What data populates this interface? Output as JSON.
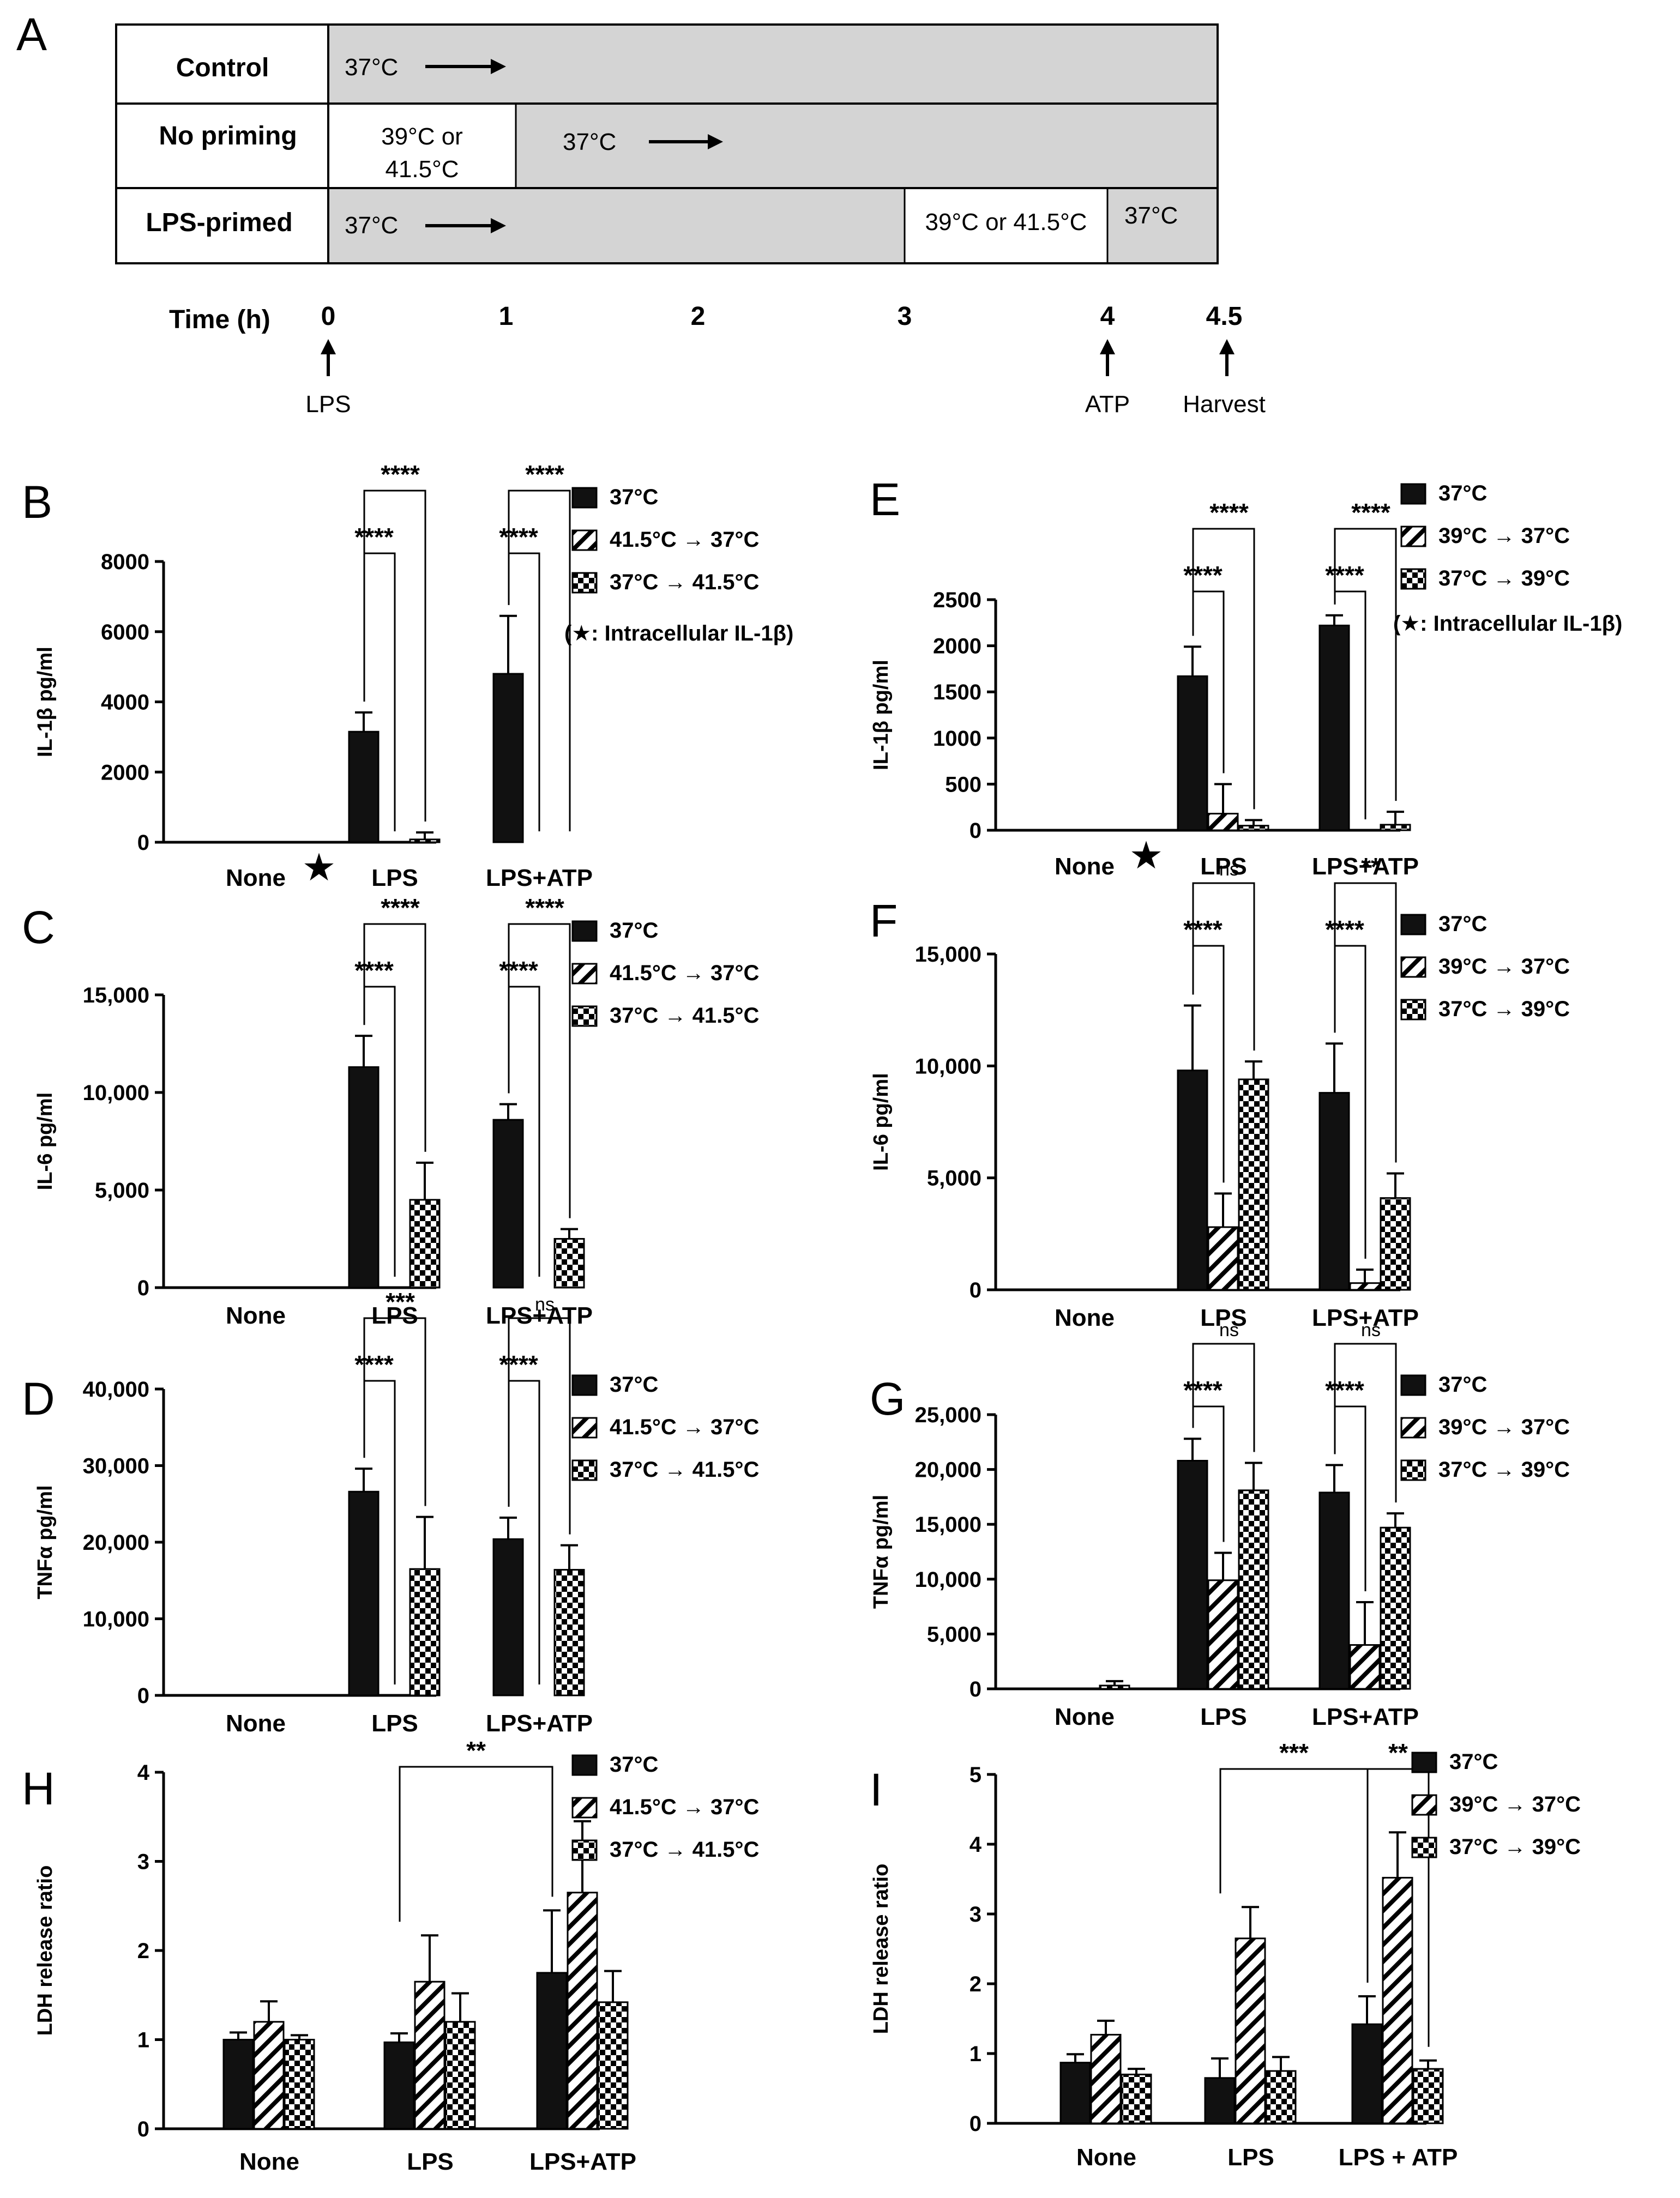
{
  "timeline": {
    "label": "A",
    "rows": [
      {
        "name": "Control",
        "cells": [
          "37°C"
        ]
      },
      {
        "name": "No priming",
        "cells": [
          "39°C or",
          "41.5°C",
          "37°C"
        ]
      },
      {
        "name": "LPS-primed",
        "cells": [
          "37°C",
          "39°C or 41.5°C",
          "37°C"
        ]
      }
    ],
    "time_label": "Time (h)",
    "time_ticks": [
      "0",
      "1",
      "2",
      "3",
      "4",
      "4.5"
    ],
    "events": [
      {
        "at": "0",
        "label": "LPS"
      },
      {
        "at": "4",
        "label": "ATP"
      },
      {
        "at": "4.5",
        "label": "Harvest"
      }
    ]
  },
  "chart_data": [
    {
      "panel": "B",
      "type": "bar",
      "categories": [
        "None",
        "LPS",
        "LPS+ATP"
      ],
      "series": [
        {
          "name": "37°C",
          "values": [
            0,
            3150,
            4800
          ],
          "errors": [
            0,
            550,
            1650
          ]
        },
        {
          "name": "41.5°C → 37°C",
          "values": [
            0,
            0,
            0
          ],
          "errors": [
            0,
            0,
            0
          ]
        },
        {
          "name": "37°C → 41.5°C",
          "values": [
            0,
            80,
            0
          ],
          "errors": [
            0,
            200,
            0
          ]
        }
      ],
      "ylabel": "IL-1β pg/ml",
      "ylim": [
        0,
        8000
      ],
      "yticks": [
        0,
        2000,
        4000,
        6000,
        8000
      ],
      "ytick_labels": [
        "0",
        "2000",
        "4000",
        "6000",
        "8000"
      ],
      "marker_text": "★",
      "note": "(★: Intracellular IL-1β)",
      "brackets": [
        {
          "group": 1,
          "from": 0,
          "to": 1,
          "label": "****"
        },
        {
          "group": 1,
          "from": 0,
          "to": 2,
          "label": "****"
        },
        {
          "group": 2,
          "from": 0,
          "to": 1,
          "label": "****"
        },
        {
          "group": 2,
          "from": 0,
          "to": 2,
          "label": "****"
        }
      ]
    },
    {
      "panel": "C",
      "type": "bar",
      "categories": [
        "None",
        "LPS",
        "LPS+ATP"
      ],
      "series": [
        {
          "name": "37°C",
          "values": [
            0,
            11300,
            8600
          ],
          "errors": [
            0,
            1600,
            800
          ]
        },
        {
          "name": "41.5°C → 37°C",
          "values": [
            0,
            0,
            0
          ],
          "errors": [
            0,
            0,
            0
          ]
        },
        {
          "name": "37°C → 41.5°C",
          "values": [
            0,
            4500,
            2500
          ],
          "errors": [
            0,
            1900,
            500
          ]
        }
      ],
      "ylabel": "IL-6 pg/ml",
      "ylim": [
        0,
        15000
      ],
      "yticks": [
        0,
        5000,
        10000,
        15000
      ],
      "ytick_labels": [
        "0",
        "5,000",
        "10,000",
        "15,000"
      ],
      "brackets": [
        {
          "group": 1,
          "from": 0,
          "to": 1,
          "label": "****"
        },
        {
          "group": 1,
          "from": 0,
          "to": 2,
          "label": "****"
        },
        {
          "group": 2,
          "from": 0,
          "to": 1,
          "label": "****"
        },
        {
          "group": 2,
          "from": 0,
          "to": 2,
          "label": "****"
        }
      ]
    },
    {
      "panel": "D",
      "type": "bar",
      "categories": [
        "None",
        "LPS",
        "LPS+ATP"
      ],
      "series": [
        {
          "name": "37°C",
          "values": [
            0,
            26600,
            20400
          ],
          "errors": [
            0,
            3000,
            2800
          ]
        },
        {
          "name": "41.5°C → 37°C",
          "values": [
            0,
            0,
            0
          ],
          "errors": [
            0,
            0,
            0
          ]
        },
        {
          "name": "37°C → 41.5°C",
          "values": [
            0,
            16500,
            16400
          ],
          "errors": [
            0,
            6800,
            3200
          ]
        }
      ],
      "ylabel": "TNFα pg/ml",
      "ylim": [
        0,
        40000
      ],
      "yticks": [
        0,
        10000,
        20000,
        30000,
        40000
      ],
      "ytick_labels": [
        "0",
        "10,000",
        "20,000",
        "30,000",
        "40,000"
      ],
      "brackets": [
        {
          "group": 1,
          "from": 0,
          "to": 1,
          "label": "****"
        },
        {
          "group": 1,
          "from": 0,
          "to": 2,
          "label": "***"
        },
        {
          "group": 2,
          "from": 0,
          "to": 1,
          "label": "****"
        },
        {
          "group": 2,
          "from": 0,
          "to": 2,
          "label": "ns"
        }
      ]
    },
    {
      "panel": "E",
      "type": "bar",
      "categories": [
        "None",
        "LPS",
        "LPS+ATP"
      ],
      "series": [
        {
          "name": "37°C",
          "values": [
            0,
            1670,
            2220
          ],
          "errors": [
            0,
            320,
            110
          ]
        },
        {
          "name": "39°C → 37°C",
          "values": [
            0,
            180,
            0
          ],
          "errors": [
            0,
            320,
            0
          ]
        },
        {
          "name": "37°C → 39°C",
          "values": [
            0,
            50,
            60
          ],
          "errors": [
            0,
            60,
            140
          ]
        }
      ],
      "ylabel": "IL-1β pg/ml",
      "ylim": [
        0,
        2500
      ],
      "yticks": [
        0,
        500,
        1000,
        1500,
        2000,
        2500
      ],
      "ytick_labels": [
        "0",
        "500",
        "1000",
        "1500",
        "2000",
        "2500"
      ],
      "marker_text": "★",
      "note": "(★: Intracellular IL-1β)",
      "brackets": [
        {
          "group": 1,
          "from": 0,
          "to": 1,
          "label": "****"
        },
        {
          "group": 1,
          "from": 0,
          "to": 2,
          "label": "****"
        },
        {
          "group": 2,
          "from": 0,
          "to": 1,
          "label": "****"
        },
        {
          "group": 2,
          "from": 0,
          "to": 2,
          "label": "****"
        }
      ]
    },
    {
      "panel": "F",
      "type": "bar",
      "categories": [
        "None",
        "LPS",
        "LPS+ATP"
      ],
      "series": [
        {
          "name": "37°C",
          "values": [
            0,
            9800,
            8800
          ],
          "errors": [
            0,
            2900,
            2200
          ]
        },
        {
          "name": "39°C → 37°C",
          "values": [
            0,
            2800,
            300
          ],
          "errors": [
            0,
            1500,
            600
          ]
        },
        {
          "name": "37°C → 39°C",
          "values": [
            0,
            9400,
            4100
          ],
          "errors": [
            0,
            800,
            1100
          ]
        }
      ],
      "ylabel": "IL-6 pg/ml",
      "ylim": [
        0,
        15000
      ],
      "yticks": [
        0,
        5000,
        10000,
        15000
      ],
      "ytick_labels": [
        "0",
        "5,000",
        "10,000",
        "15,000"
      ],
      "brackets": [
        {
          "group": 1,
          "from": 0,
          "to": 1,
          "label": "****"
        },
        {
          "group": 1,
          "from": 0,
          "to": 2,
          "label": "ns"
        },
        {
          "group": 2,
          "from": 0,
          "to": 1,
          "label": "****"
        },
        {
          "group": 2,
          "from": 0,
          "to": 2,
          "label": "**"
        }
      ]
    },
    {
      "panel": "G",
      "type": "bar",
      "categories": [
        "None",
        "LPS",
        "LPS+ATP"
      ],
      "series": [
        {
          "name": "37°C",
          "values": [
            0,
            20800,
            17900
          ],
          "errors": [
            0,
            2000,
            2500
          ]
        },
        {
          "name": "39°C → 37°C",
          "values": [
            0,
            9900,
            4000
          ],
          "errors": [
            0,
            2500,
            3900
          ]
        },
        {
          "name": "37°C → 39°C",
          "values": [
            300,
            18100,
            14700
          ],
          "errors": [
            400,
            2500,
            1300
          ]
        }
      ],
      "ylabel": "TNFα pg/ml",
      "ylim": [
        0,
        25000
      ],
      "yticks": [
        0,
        5000,
        10000,
        15000,
        20000,
        25000
      ],
      "ytick_labels": [
        "0",
        "5,000",
        "10,000",
        "15,000",
        "20,000",
        "25,000"
      ],
      "brackets": [
        {
          "group": 1,
          "from": 0,
          "to": 1,
          "label": "****"
        },
        {
          "group": 1,
          "from": 0,
          "to": 2,
          "label": "ns"
        },
        {
          "group": 2,
          "from": 0,
          "to": 1,
          "label": "****"
        },
        {
          "group": 2,
          "from": 0,
          "to": 2,
          "label": "ns"
        }
      ]
    },
    {
      "panel": "H",
      "type": "bar",
      "categories": [
        "None",
        "LPS",
        "LPS+ATP"
      ],
      "series": [
        {
          "name": "37°C",
          "values": [
            1.0,
            0.97,
            1.75
          ],
          "errors": [
            0.08,
            0.1,
            0.7
          ]
        },
        {
          "name": "41.5°C → 37°C",
          "values": [
            1.2,
            1.65,
            2.65
          ],
          "errors": [
            0.23,
            0.52,
            0.8
          ]
        },
        {
          "name": "37°C → 41.5°C",
          "values": [
            1.0,
            1.2,
            1.42
          ],
          "errors": [
            0.05,
            0.32,
            0.35
          ]
        }
      ],
      "ylabel": "LDH release ratio",
      "ylim": [
        0,
        4
      ],
      "yticks": [
        0,
        1,
        2,
        3,
        4
      ],
      "ytick_labels": [
        "0",
        "1",
        "2",
        "3",
        "4"
      ],
      "brackets": [
        {
          "kind": "cross",
          "a_group": 1,
          "a_bar": 0,
          "b_group": 2,
          "b_bar": 0,
          "label": "**"
        }
      ]
    },
    {
      "panel": "I",
      "type": "bar",
      "categories": [
        "None",
        "LPS",
        "LPS + ATP"
      ],
      "series": [
        {
          "name": "37°C",
          "values": [
            0.87,
            0.65,
            1.42
          ],
          "errors": [
            0.12,
            0.28,
            0.4
          ]
        },
        {
          "name": "39°C → 37°C",
          "values": [
            1.27,
            2.65,
            3.52
          ],
          "errors": [
            0.2,
            0.45,
            0.65
          ]
        },
        {
          "name": "37°C → 39°C",
          "values": [
            0.7,
            0.75,
            0.78
          ],
          "errors": [
            0.08,
            0.2,
            0.12
          ]
        }
      ],
      "ylabel": "LDH release ratio",
      "ylim": [
        0,
        5
      ],
      "yticks": [
        0,
        1,
        2,
        3,
        4,
        5
      ],
      "ytick_labels": [
        "0",
        "1",
        "2",
        "3",
        "4",
        "5"
      ],
      "brackets": [
        {
          "kind": "cross",
          "a_group": 1,
          "a_bar": 0,
          "b_group": 2,
          "b_bar": 0,
          "label": "***"
        },
        {
          "kind": "cross",
          "a_group": 2,
          "a_bar": 0,
          "b_group": 2,
          "b_bar": 2,
          "label": "**"
        }
      ]
    }
  ]
}
